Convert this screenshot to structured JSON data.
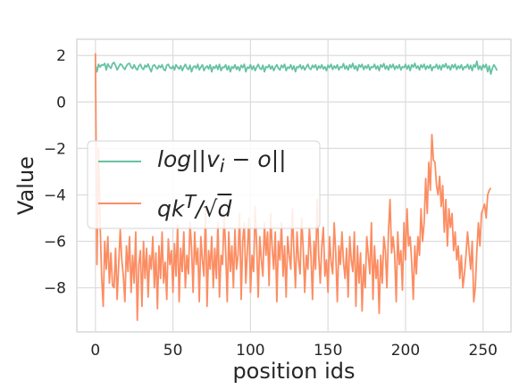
{
  "chart_data": {
    "type": "line",
    "xlabel": "position ids",
    "ylabel": "Value",
    "xlim": [
      -12,
      268
    ],
    "ylim": [
      -9.9,
      2.7
    ],
    "xticks": [
      0,
      50,
      100,
      150,
      200,
      250
    ],
    "yticks": [
      2,
      0,
      -2,
      -4,
      -6,
      -8
    ],
    "grid": true,
    "legend_position": "center-left",
    "series": [
      {
        "name": "log||v_i - o||",
        "legend_html": "log||v<sub>i</sub> − o||",
        "color": "#66c2a5",
        "x_start": 0,
        "values": [
          1.6,
          1.3,
          1.62,
          1.5,
          1.6,
          1.58,
          1.66,
          1.38,
          1.64,
          1.52,
          1.45,
          1.65,
          1.7,
          1.57,
          1.38,
          1.5,
          1.63,
          1.6,
          1.48,
          1.4,
          1.55,
          1.64,
          1.66,
          1.5,
          1.44,
          1.6,
          1.45,
          1.38,
          1.55,
          1.62,
          1.46,
          1.4,
          1.58,
          1.5,
          1.63,
          1.45,
          1.3,
          1.55,
          1.6,
          1.5,
          1.42,
          1.57,
          1.48,
          1.6,
          1.4,
          1.35,
          1.58,
          1.62,
          1.48,
          1.44,
          1.55,
          1.38,
          1.6,
          1.5,
          1.42,
          1.56,
          1.35,
          1.5,
          1.62,
          1.46,
          1.4,
          1.58,
          1.3,
          1.5,
          1.55,
          1.45,
          1.62,
          1.38,
          1.5,
          1.6,
          1.35,
          1.48,
          1.55,
          1.42,
          1.6,
          1.3,
          1.52,
          1.45,
          1.58,
          1.4,
          1.62,
          1.35,
          1.5,
          1.48,
          1.6,
          1.38,
          1.55,
          1.3,
          1.52,
          1.45,
          1.6,
          1.4,
          1.52,
          1.35,
          1.58,
          1.48,
          1.62,
          1.3,
          1.5,
          1.45,
          1.6,
          1.4,
          1.55,
          1.35,
          1.5,
          1.62,
          1.45,
          1.4,
          1.58,
          1.3,
          1.52,
          1.48,
          1.6,
          1.42,
          1.55,
          1.35,
          1.5,
          1.6,
          1.45,
          1.38,
          1.58,
          1.48,
          1.62,
          1.35,
          1.5,
          1.45,
          1.6,
          1.4,
          1.55,
          1.3,
          1.52,
          1.48,
          1.6,
          1.42,
          1.55,
          1.38,
          1.5,
          1.62,
          1.45,
          1.4,
          1.58,
          1.48,
          1.6,
          1.38,
          1.55,
          1.45,
          1.6,
          1.42,
          1.52,
          1.35,
          1.58,
          1.48,
          1.62,
          1.4,
          1.55,
          1.45,
          1.6,
          1.38,
          1.52,
          1.48,
          1.65,
          1.42,
          1.55,
          1.38,
          1.6,
          1.48,
          1.66,
          1.42,
          1.55,
          1.35,
          1.6,
          1.5,
          1.62,
          1.4,
          1.55,
          1.45,
          1.6,
          1.38,
          1.52,
          1.48,
          1.62,
          1.42,
          1.55,
          1.35,
          1.6,
          1.5,
          1.65,
          1.42,
          1.55,
          1.38,
          1.6,
          1.48,
          1.62,
          1.4,
          1.55,
          1.45,
          1.6,
          1.38,
          1.52,
          1.48,
          1.62,
          1.42,
          1.58,
          1.35,
          1.6,
          1.5,
          1.66,
          1.45,
          1.55,
          1.38,
          1.6,
          1.48,
          1.62,
          1.4,
          1.55,
          1.45,
          1.6,
          1.35,
          1.52,
          1.48,
          1.62,
          1.42,
          1.58,
          1.38,
          1.6,
          1.5,
          1.65,
          1.45,
          1.55,
          1.38,
          1.6,
          1.48,
          1.62,
          1.4,
          1.55,
          1.45,
          1.6,
          1.38,
          1.52,
          1.48,
          1.62,
          1.42,
          1.58,
          1.35,
          1.6,
          1.5,
          1.75,
          1.4,
          1.55,
          1.38,
          1.6,
          1.48,
          1.62,
          1.3,
          1.55,
          1.2,
          1.45,
          1.6,
          1.5,
          1.35
        ]
      },
      {
        "name": "qk^T/√d",
        "legend_html": "qk<sup>T</sup>/√<span style=\"text-decoration:overline\">d</span>",
        "color": "#fc8d62",
        "x_start": 0,
        "values": [
          2.1,
          -7.0,
          -2.0,
          -5.2,
          -7.5,
          -8.8,
          -6.0,
          -7.2,
          -5.8,
          -7.8,
          -6.5,
          -7.9,
          -8.0,
          -6.3,
          -8.5,
          -7.0,
          -5.5,
          -6.8,
          -7.5,
          -8.6,
          -6.2,
          -7.3,
          -5.8,
          -8.2,
          -6.6,
          -7.8,
          -5.6,
          -9.4,
          -7.0,
          -6.4,
          -8.8,
          -6.0,
          -7.6,
          -6.3,
          -8.4,
          -6.6,
          -7.2,
          -5.8,
          -8.0,
          -6.5,
          -8.9,
          -6.2,
          -7.6,
          -5.6,
          -7.8,
          -6.9,
          -8.5,
          -5.9,
          -7.0,
          -6.4,
          -8.2,
          -6.1,
          -7.5,
          -5.3,
          -8.6,
          -6.3,
          -7.3,
          -5.6,
          -8.0,
          -6.6,
          -7.4,
          -5.2,
          -6.3,
          -8.2,
          -5.6,
          -7.0,
          -6.3,
          -8.6,
          -5.8,
          -6.8,
          -7.5,
          -4.6,
          -8.8,
          -6.4,
          -7.2,
          -5.8,
          -8.0,
          -6.3,
          -7.6,
          -5.2,
          -8.4,
          -6.6,
          -7.0,
          -4.8,
          -6.4,
          -8.6,
          -5.6,
          -7.3,
          -6.2,
          -8.0,
          -5.5,
          -7.2,
          -6.6,
          -4.8,
          -8.5,
          -6.0,
          -5.2,
          -7.8,
          -6.4,
          -5.0,
          -8.2,
          -6.6,
          -7.3,
          -4.5,
          -6.2,
          -8.4,
          -5.8,
          -6.8,
          -7.5,
          -5.2,
          -6.6,
          -5.6,
          -7.9,
          -4.8,
          -6.3,
          -7.2,
          -5.6,
          -8.6,
          -6.0,
          -6.8,
          -5.2,
          -7.5,
          -6.2,
          -8.4,
          -5.8,
          -6.6,
          -7.2,
          -4.6,
          -6.4,
          -8.0,
          -5.6,
          -6.8,
          -7.4,
          -5.0,
          -6.3,
          -8.2,
          -6.6,
          -7.2,
          -5.4,
          -6.6,
          -8.5,
          -6.0,
          -7.2,
          -4.2,
          -6.6,
          -7.8,
          -6.2,
          -5.4,
          -7.5,
          -6.8,
          -8.2,
          -5.8,
          -6.9,
          -7.4,
          -5.2,
          -6.5,
          -8.6,
          -6.2,
          -7.0,
          -5.6,
          -6.9,
          -7.6,
          -6.3,
          -8.4,
          -5.8,
          -6.8,
          -7.3,
          -5.6,
          -8.8,
          -6.2,
          -7.8,
          -6.5,
          -9.0,
          -7.0,
          -8.0,
          -5.8,
          -6.6,
          -7.4,
          -5.2,
          -8.5,
          -6.2,
          -7.6,
          -6.8,
          -9.1,
          -6.6,
          -7.8,
          -5.8,
          -6.4,
          -8.0,
          -5.6,
          -4.2,
          -6.5,
          -5.8,
          -6.6,
          -8.6,
          -5.6,
          -7.0,
          -6.4,
          -8.1,
          -5.2,
          -6.8,
          -4.6,
          -6.2,
          -5.8,
          -6.9,
          -8.5,
          -6.2,
          -7.4,
          -5.8,
          -6.6,
          -4.6,
          -6.0,
          -5.2,
          -3.3,
          -4.8,
          -2.6,
          -3.8,
          -1.4,
          -2.5,
          -2.6,
          -3.6,
          -4.0,
          -3.2,
          -4.5,
          -3.6,
          -5.6,
          -4.2,
          -6.2,
          -4.6,
          -5.4,
          -4.8,
          -6.4,
          -5.6,
          -6.8,
          -6.2,
          -7.6,
          -6.6,
          -8.0,
          -7.4,
          -6.6,
          -5.6,
          -6.4,
          -7.2,
          -6.0,
          -8.6,
          -8.0,
          -6.4,
          -5.2,
          -6.2,
          -4.8,
          -4.6,
          -4.4,
          -5.0,
          -4.0,
          -3.8,
          -3.7
        ]
      }
    ]
  }
}
